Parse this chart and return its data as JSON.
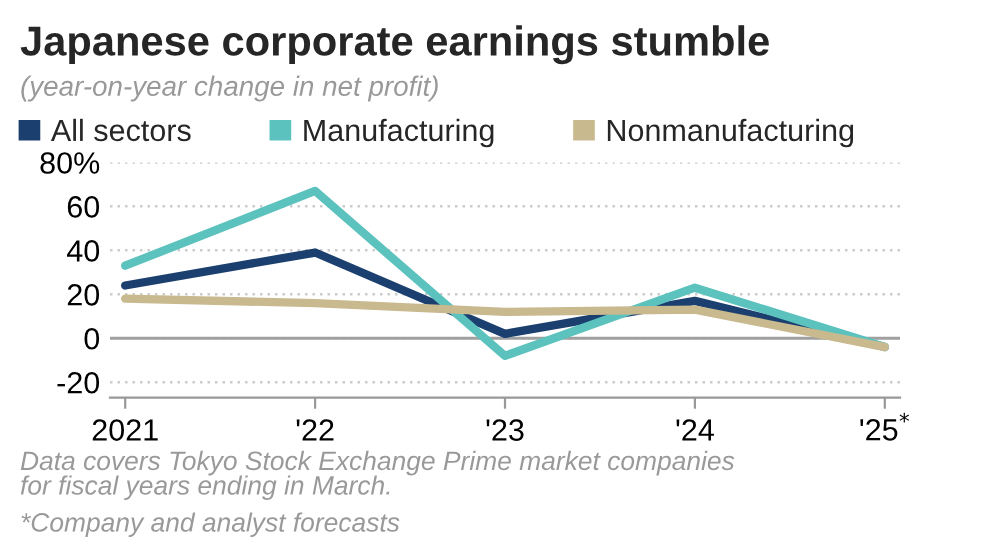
{
  "chart_data": {
    "type": "line",
    "title": "Japanese corporate earnings stumble",
    "subtitle": "(year-on-year change in net profit)",
    "categories": [
      "2021",
      "'22",
      "'23",
      "'24",
      "'25$^{*}$"
    ],
    "series": [
      {
        "name": "All sectors",
        "color": "#1b3f6e",
        "values": [
          24,
          39,
          2,
          17,
          -4
        ]
      },
      {
        "name": "Manufacturing",
        "color": "#5bc2bd",
        "values": [
          33,
          67,
          -8,
          23,
          -4
        ]
      },
      {
        "name": "Nonmanufacturing",
        "color": "#c8b98f",
        "values": [
          18,
          16,
          12,
          13,
          -4
        ]
      }
    ],
    "ylim": [
      -27,
      80
    ],
    "yticks": [
      {
        "value": 80,
        "label": "80%"
      },
      60,
      40,
      20,
      0,
      -20
    ],
    "grid": "y",
    "legend": "top left",
    "ref_lines": [
      {
        "axis": "y",
        "value": 0,
        "color": "#a0a0a0"
      }
    ],
    "annotations": [
      "Data covers Tokyo Stock Exchange Prime market companies\nfor fiscal years ending in March.",
      "*Company and analyst forecasts"
    ]
  }
}
